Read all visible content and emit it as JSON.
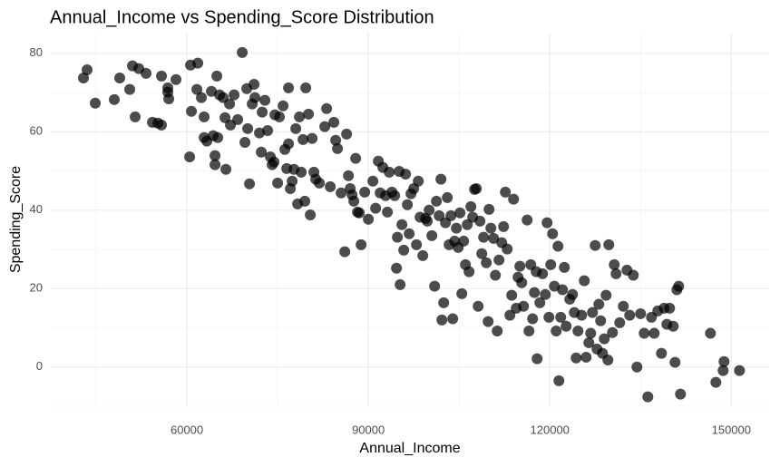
{
  "chart_data": {
    "type": "scatter",
    "title": "Annual_Income vs Spending_Score Distribution",
    "x_label": "Annual_Income",
    "y_label": "Spending_Score",
    "xlim": [
      37350,
      156250
    ],
    "ylim": [
      -10,
      85.5
    ],
    "xticks": [
      60000,
      90000,
      120000,
      150000
    ],
    "yticks": [
      0,
      20,
      40,
      60,
      80
    ],
    "x_minor_ticks": [
      45000,
      75000,
      105000,
      135000
    ],
    "y_minor_ticks": [
      -10,
      10,
      30,
      50,
      70
    ],
    "grid": true,
    "color": "#000000",
    "alpha": 0.7,
    "x": [
      42900,
      43500,
      44850,
      48000,
      48900,
      50550,
      51000,
      51450,
      52050,
      53250,
      54300,
      55200,
      55800,
      55800,
      56850,
      56850,
      57000,
      58200,
      60450,
      60600,
      60750,
      61650,
      61800,
      62400,
      62850,
      62850,
      63300,
      64050,
      64350,
      64650,
      64650,
      64950,
      65100,
      65400,
      66000,
      66300,
      66450,
      67050,
      67200,
      67800,
      68400,
      69150,
      69600,
      69900,
      70050,
      70350,
      70800,
      71100,
      71250,
      72000,
      72300,
      72450,
      72900,
      73350,
      73800,
      74100,
      74400,
      74550,
      75000,
      75300,
      75900,
      76200,
      76500,
      76800,
      76800,
      77100,
      77400,
      77700,
      78000,
      78300,
      78600,
      78900,
      79200,
      79500,
      79650,
      80100,
      80400,
      80700,
      81000,
      81300,
      81900,
      82800,
      83100,
      83700,
      84300,
      84600,
      84900,
      85500,
      86100,
      86400,
      86700,
      87000,
      87300,
      87600,
      87900,
      88200,
      88500,
      88800,
      89400,
      90000,
      90750,
      91200,
      91650,
      91950,
      92400,
      92850,
      93150,
      93450,
      93900,
      94350,
      94650,
      94800,
      95100,
      95250,
      95550,
      95850,
      96150,
      96450,
      96750,
      97050,
      97500,
      97950,
      98250,
      98550,
      99000,
      99450,
      99750,
      100050,
      100500,
      100950,
      101250,
      101700,
      102000,
      102150,
      102450,
      102750,
      103050,
      103350,
      103650,
      103950,
      104250,
      104550,
      104850,
      105150,
      105450,
      105750,
      106050,
      106350,
      106650,
      106950,
      107250,
      107550,
      107850,
      108150,
      108450,
      108750,
      109050,
      109500,
      109800,
      109950,
      110250,
      110700,
      111000,
      111300,
      111600,
      112050,
      112350,
      112650,
      112950,
      113400,
      113700,
      114000,
      114450,
      114750,
      115050,
      115350,
      115650,
      116250,
      116550,
      116850,
      117150,
      117450,
      117750,
      117900,
      118350,
      118800,
      119250,
      119550,
      119850,
      120150,
      120450,
      120750,
      121050,
      121350,
      121500,
      121800,
      122100,
      122400,
      122700,
      123300,
      123750,
      124050,
      124350,
      124650,
      125250,
      125700,
      126000,
      126450,
      126750,
      127050,
      127500,
      127800,
      128100,
      128400,
      128700,
      129000,
      129300,
      129600,
      129750,
      130350,
      130650,
      130950,
      131550,
      132150,
      132750,
      133200,
      133800,
      134400,
      135000,
      135600,
      136200,
      136800,
      137250,
      137850,
      138450,
      138900,
      139350,
      139800,
      140400,
      140700,
      141000,
      141300,
      141600,
      146550,
      147450,
      148650,
      148800,
      151350
    ],
    "y": [
      73.7,
      75.8,
      67.3,
      68.2,
      73.7,
      70.8,
      76.8,
      63.8,
      76.1,
      74.9,
      62.4,
      62.2,
      61.7,
      74.2,
      71.2,
      70.1,
      68.4,
      73.3,
      53.6,
      77.0,
      65.2,
      70.8,
      77.5,
      68.7,
      58.5,
      63.8,
      57.6,
      70.3,
      59.0,
      53.9,
      51.6,
      74.2,
      58.5,
      69.4,
      68.7,
      63.6,
      50.4,
      67.1,
      61.7,
      69.4,
      63.1,
      80.2,
      57.3,
      71.0,
      60.8,
      46.7,
      67.1,
      72.1,
      68.7,
      59.7,
      54.8,
      65.0,
      68.0,
      60.3,
      53.6,
      51.6,
      52.3,
      64.3,
      46.9,
      63.8,
      66.6,
      55.5,
      50.6,
      71.2,
      56.9,
      45.5,
      47.4,
      50.4,
      60.8,
      41.6,
      63.8,
      49.7,
      58.0,
      42.3,
      71.2,
      64.5,
      38.8,
      58.3,
      49.7,
      47.9,
      46.9,
      61.3,
      65.9,
      46.0,
      62.4,
      57.8,
      55.7,
      44.4,
      29.4,
      59.4,
      48.8,
      45.5,
      43.9,
      42.3,
      53.2,
      39.5,
      39.3,
      31.2,
      44.6,
      37.7,
      47.4,
      40.5,
      52.5,
      44.4,
      50.9,
      43.7,
      39.5,
      49.7,
      44.6,
      43.7,
      25.2,
      33.1,
      49.9,
      21.0,
      36.3,
      29.8,
      49.2,
      41.4,
      34.0,
      44.2,
      45.5,
      31.2,
      47.4,
      38.2,
      28.4,
      37.9,
      37.2,
      40.0,
      33.5,
      20.6,
      42.3,
      38.6,
      47.9,
      12.0,
      16.4,
      36.8,
      43.2,
      31.2,
      38.6,
      12.3,
      32.1,
      35.4,
      30.5,
      39.3,
      18.7,
      32.1,
      26.1,
      36.3,
      24.3,
      40.9,
      38.2,
      45.3,
      45.5,
      15.5,
      37.2,
      28.9,
      33.1,
      26.6,
      11.6,
      40.2,
      35.4,
      32.8,
      23.4,
      9.2,
      27.3,
      31.7,
      35.8,
      44.6,
      30.1,
      13.2,
      18.3,
      42.8,
      15.0,
      22.9,
      25.7,
      21.5,
      15.5,
      37.5,
      9.2,
      26.1,
      12.3,
      19.0,
      24.3,
      2.1,
      16.4,
      23.8,
      18.5,
      36.8,
      12.7,
      26.1,
      34.0,
      20.6,
      9.2,
      30.8,
      -3.5,
      12.7,
      19.7,
      25.4,
      10.4,
      17.3,
      18.5,
      13.9,
      2.3,
      9.2,
      13.2,
      22.0,
      2.5,
      6.2,
      8.6,
      13.9,
      31.0,
      4.6,
      16.0,
      11.8,
      3.5,
      7.2,
      18.3,
      1.8,
      31.2,
      8.8,
      26.1,
      23.8,
      11.3,
      15.5,
      24.7,
      13.2,
      23.4,
      0.0,
      13.6,
      8.6,
      -7.6,
      12.7,
      8.6,
      14.3,
      3.5,
      15.0,
      10.9,
      15.0,
      10.4,
      1.2,
      19.7,
      20.6,
      -6.9,
      8.6,
      -3.9,
      -0.9,
      1.4,
      -0.9
    ]
  }
}
